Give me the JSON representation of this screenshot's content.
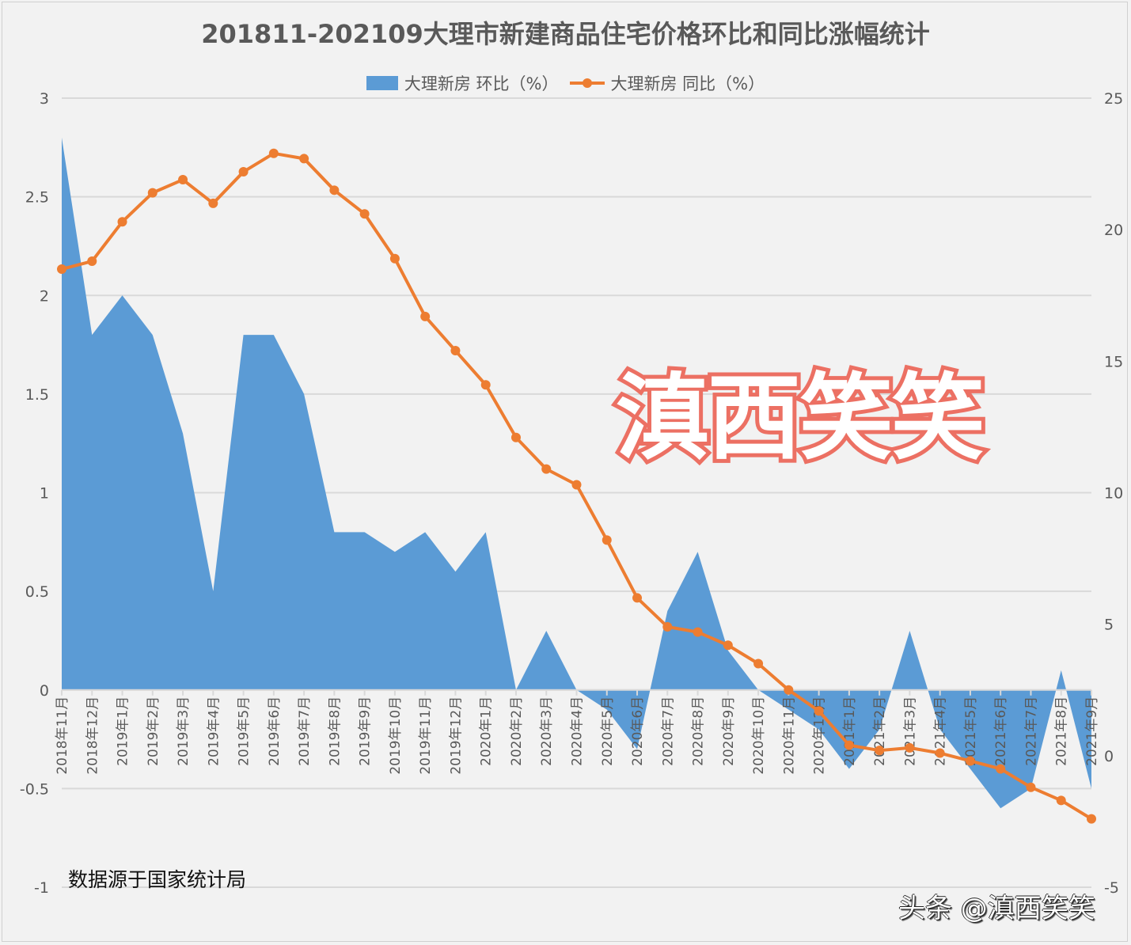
{
  "title": "201811-202109大理市新建商品住宅价格环比和同比涨幅统计",
  "legend": {
    "series1": "大理新房 环比（%）",
    "series2": "大理新房 同比（%）"
  },
  "source_note": "数据源于国家统计局",
  "watermark": {
    "big": "滇西笑笑",
    "small": "头条 @滇西笑笑"
  },
  "colors": {
    "area": "#5b9bd5",
    "line": "#ed7d31",
    "grid": "#d9d9d9",
    "text": "#595959",
    "background": "#f2f2f2",
    "watermark_stroke": "#ec7063"
  },
  "chart_data": {
    "type": "area+line",
    "title": "201811-202109大理市新建商品住宅价格环比和同比涨幅统计",
    "categories": [
      "2018年11月",
      "2018年12月",
      "2019年1月",
      "2019年2月",
      "2019年3月",
      "2019年4月",
      "2019年5月",
      "2019年6月",
      "2019年7月",
      "2019年8月",
      "2019年9月",
      "2019年10月",
      "2019年11月",
      "2019年12月",
      "2020年1月",
      "2020年2月",
      "2020年3月",
      "2020年4月",
      "2020年5月",
      "2020年6月",
      "2020年7月",
      "2020年8月",
      "2020年9月",
      "2020年10月",
      "2020年11月",
      "2020年12月",
      "2021年1月",
      "2021年2月",
      "2021年3月",
      "2021年4月",
      "2021年5月",
      "2021年6月",
      "2021年7月",
      "2021年8月",
      "2021年9月"
    ],
    "series": [
      {
        "name": "大理新房 环比（%）",
        "type": "area",
        "axis": "left",
        "values": [
          2.8,
          1.8,
          2.0,
          1.8,
          1.3,
          0.5,
          1.8,
          1.8,
          1.5,
          0.8,
          0.8,
          0.7,
          0.8,
          0.6,
          0.8,
          0.0,
          0.3,
          0.0,
          -0.1,
          -0.3,
          0.4,
          0.7,
          0.2,
          0.0,
          -0.1,
          -0.2,
          -0.4,
          -0.2,
          0.3,
          -0.2,
          -0.4,
          -0.6,
          -0.5,
          0.1,
          -0.5
        ]
      },
      {
        "name": "大理新房 同比（%）",
        "type": "line",
        "axis": "right",
        "values": [
          18.5,
          18.8,
          20.3,
          21.4,
          21.9,
          21.0,
          22.2,
          22.9,
          22.7,
          21.5,
          20.6,
          18.9,
          16.7,
          15.4,
          14.1,
          12.1,
          10.9,
          10.3,
          8.2,
          6.0,
          4.9,
          4.7,
          4.2,
          3.5,
          2.5,
          1.7,
          0.4,
          0.2,
          0.3,
          0.1,
          -0.2,
          -0.5,
          -1.2,
          -1.7,
          -2.4
        ]
      }
    ],
    "y_left": {
      "ticks": [
        "3",
        "2.5",
        "2",
        "1.5",
        "1",
        "0.5",
        "0",
        "-0.5",
        "-1"
      ],
      "ylim": [
        -1,
        3
      ]
    },
    "y_right": {
      "ticks": [
        "25",
        "20",
        "15",
        "10",
        "5",
        "0",
        "-5"
      ],
      "ylim": [
        -5,
        25
      ]
    },
    "grid": true,
    "legend_position": "top"
  }
}
